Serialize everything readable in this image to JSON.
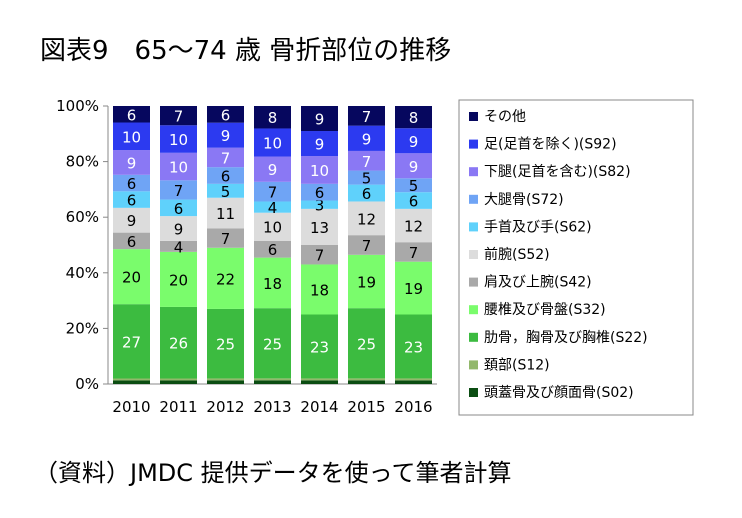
{
  "title": "図表9　65～74 歳 骨折部位の推移",
  "source": "（資料）JMDC 提供データを使って筆者計算",
  "chart_data": {
    "type": "bar",
    "stacked": true,
    "percent": true,
    "categories": [
      "2010",
      "2011",
      "2012",
      "2013",
      "2014",
      "2015",
      "2016"
    ],
    "y_ticks": [
      "0%",
      "20%",
      "40%",
      "60%",
      "80%",
      "100%"
    ],
    "ylim": [
      0,
      100
    ],
    "grid": false,
    "legend_position": "right",
    "series": [
      {
        "name": "頭蓋骨及び顔面骨(S02)",
        "color": "#0b4d12",
        "values": [
          1.3,
          1.3,
          1.3,
          1.3,
          1.3,
          1.3,
          1.3
        ],
        "labels": [
          "",
          "",
          "",
          "",
          "",
          "",
          ""
        ]
      },
      {
        "name": "頚部(S12)",
        "color": "#92b86b",
        "values": [
          0.7,
          0.7,
          0.7,
          0.7,
          0.7,
          0.7,
          0.7
        ],
        "labels": [
          "",
          "",
          "",
          "",
          "",
          "",
          ""
        ]
      },
      {
        "name": "肋骨，胸骨及び胸椎(S22)",
        "color": "#3cbb40",
        "values": [
          27,
          26,
          25,
          25,
          23,
          25,
          23
        ],
        "labels": [
          "27",
          "26",
          "25",
          "25",
          "23",
          "25",
          "23"
        ]
      },
      {
        "name": "腰椎及び骨盤(S32)",
        "color": "#7afc6c",
        "values": [
          20,
          20,
          22,
          18,
          18,
          19,
          19
        ],
        "labels": [
          "20",
          "20",
          "22",
          "18",
          "18",
          "19",
          "19"
        ]
      },
      {
        "name": "肩及び上腕(S42)",
        "color": "#a9a9a9",
        "values": [
          6,
          4,
          7,
          6,
          7,
          7,
          7
        ],
        "labels": [
          "6",
          "4",
          "7",
          "6",
          "7",
          "7",
          "7"
        ]
      },
      {
        "name": "前腕(S52)",
        "color": "#dcdcdc",
        "values": [
          9,
          9,
          11,
          10,
          13,
          12,
          12
        ],
        "labels": [
          "9",
          "9",
          "11",
          "10",
          "13",
          "12",
          "12"
        ]
      },
      {
        "name": "手首及び手(S62)",
        "color": "#5fd1fb",
        "values": [
          6,
          6,
          5,
          4,
          3,
          6,
          6
        ],
        "labels": [
          "6",
          "6",
          "5",
          "4",
          "3",
          "6",
          "6"
        ]
      },
      {
        "name": "大腿骨(S72)",
        "color": "#6fa4f5",
        "values": [
          6,
          7,
          6,
          7,
          6,
          5,
          5
        ],
        "labels": [
          "6",
          "7",
          "6",
          "7",
          "6",
          "5",
          "5"
        ]
      },
      {
        "name": "下腿(足首を含む)(S82)",
        "color": "#8a78f4",
        "values": [
          9,
          10,
          7,
          9,
          10,
          7,
          9
        ],
        "labels": [
          "9",
          "10",
          "7",
          "9",
          "10",
          "7",
          "9"
        ]
      },
      {
        "name": "足(足首を除く)(S92)",
        "color": "#2c3af0",
        "values": [
          10,
          10,
          9,
          10,
          9,
          9,
          9
        ],
        "labels": [
          "10",
          "10",
          "9",
          "10",
          "9",
          "9",
          "9"
        ]
      },
      {
        "name": "その他",
        "color": "#06075e",
        "values": [
          6,
          7,
          6,
          8,
          9,
          7,
          8
        ],
        "labels": [
          "6",
          "7",
          "6",
          "8",
          "9",
          "7",
          "8"
        ]
      }
    ]
  }
}
